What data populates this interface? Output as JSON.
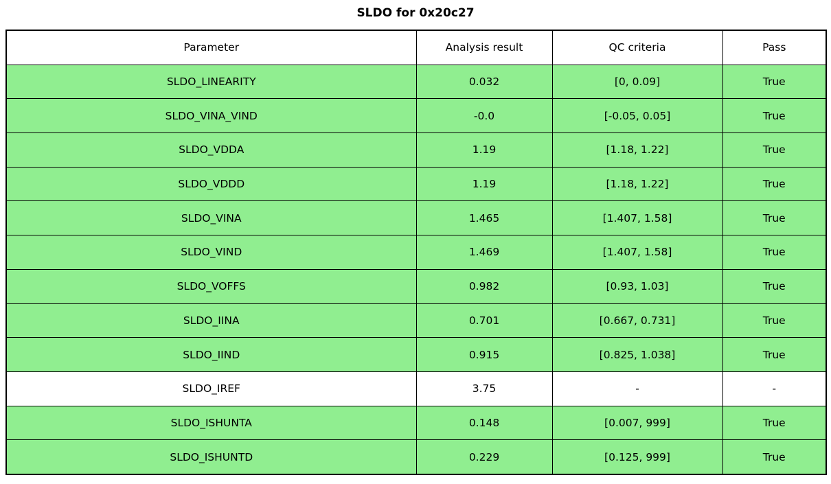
{
  "title": "SLDO for 0x20c27",
  "chart_data": {
    "type": "table",
    "title": "SLDO for 0x20c27",
    "columns": [
      "Parameter",
      "Analysis result",
      "QC criteria",
      "Pass"
    ],
    "rows": [
      {
        "parameter": "SLDO_LINEARITY",
        "result": "0.032",
        "criteria": "[0, 0.09]",
        "pass": "True",
        "highlight": true
      },
      {
        "parameter": "SLDO_VINA_VIND",
        "result": "-0.0",
        "criteria": "[-0.05, 0.05]",
        "pass": "True",
        "highlight": true
      },
      {
        "parameter": "SLDO_VDDA",
        "result": "1.19",
        "criteria": "[1.18, 1.22]",
        "pass": "True",
        "highlight": true
      },
      {
        "parameter": "SLDO_VDDD",
        "result": "1.19",
        "criteria": "[1.18, 1.22]",
        "pass": "True",
        "highlight": true
      },
      {
        "parameter": "SLDO_VINA",
        "result": "1.465",
        "criteria": "[1.407, 1.58]",
        "pass": "True",
        "highlight": true
      },
      {
        "parameter": "SLDO_VIND",
        "result": "1.469",
        "criteria": "[1.407, 1.58]",
        "pass": "True",
        "highlight": true
      },
      {
        "parameter": "SLDO_VOFFS",
        "result": "0.982",
        "criteria": "[0.93, 1.03]",
        "pass": "True",
        "highlight": true
      },
      {
        "parameter": "SLDO_IINA",
        "result": "0.701",
        "criteria": "[0.667, 0.731]",
        "pass": "True",
        "highlight": true
      },
      {
        "parameter": "SLDO_IIND",
        "result": "0.915",
        "criteria": "[0.825, 1.038]",
        "pass": "True",
        "highlight": true
      },
      {
        "parameter": "SLDO_IREF",
        "result": "3.75",
        "criteria": "-",
        "pass": "-",
        "highlight": false
      },
      {
        "parameter": "SLDO_ISHUNTA",
        "result": "0.148",
        "criteria": "[0.007, 999]",
        "pass": "True",
        "highlight": true
      },
      {
        "parameter": "SLDO_ISHUNTD",
        "result": "0.229",
        "criteria": "[0.125, 999]",
        "pass": "True",
        "highlight": true
      }
    ]
  },
  "colors": {
    "pass_row_green": "#90ee90",
    "neutral_row_white": "#ffffff",
    "border_black": "#000000"
  }
}
